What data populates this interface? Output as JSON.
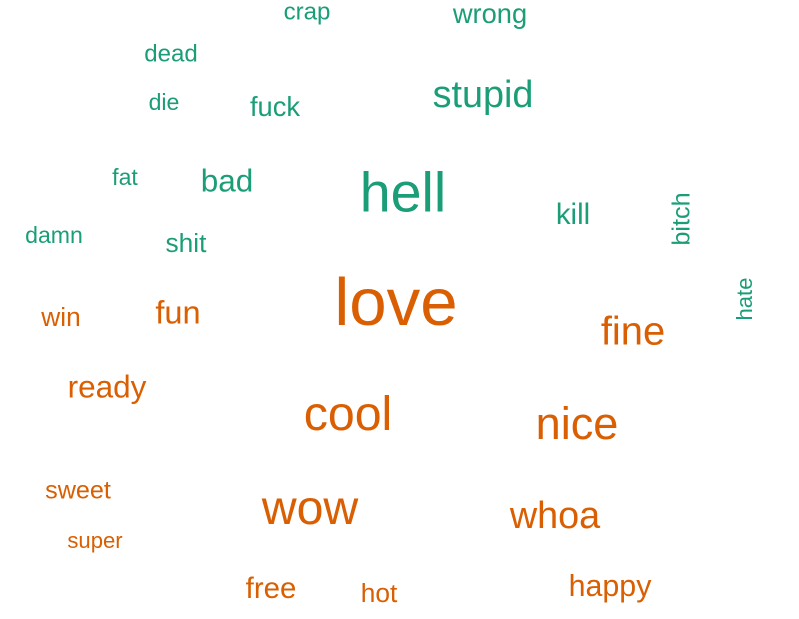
{
  "chart_data": {
    "type": "wordcloud",
    "groups": [
      {
        "id": "negative",
        "color": "#1b9e77"
      },
      {
        "id": "positive",
        "color": "#d95f02"
      }
    ],
    "words": [
      {
        "text": "crap",
        "group": "negative",
        "weight": 2.3,
        "rotate": 0
      },
      {
        "text": "wrong",
        "group": "negative",
        "weight": 2.6,
        "rotate": 0
      },
      {
        "text": "dead",
        "group": "negative",
        "weight": 2.3,
        "rotate": 0
      },
      {
        "text": "die",
        "group": "negative",
        "weight": 2.2,
        "rotate": 0
      },
      {
        "text": "fuck",
        "group": "negative",
        "weight": 2.6,
        "rotate": 0
      },
      {
        "text": "stupid",
        "group": "negative",
        "weight": 3.6,
        "rotate": 0
      },
      {
        "text": "fat",
        "group": "negative",
        "weight": 2.2,
        "rotate": 0
      },
      {
        "text": "bad",
        "group": "negative",
        "weight": 3.0,
        "rotate": 0
      },
      {
        "text": "hell",
        "group": "negative",
        "weight": 5.3,
        "rotate": 0
      },
      {
        "text": "kill",
        "group": "negative",
        "weight": 2.8,
        "rotate": 0
      },
      {
        "text": "bitch",
        "group": "negative",
        "weight": 2.4,
        "rotate": -90
      },
      {
        "text": "damn",
        "group": "negative",
        "weight": 2.2,
        "rotate": 0
      },
      {
        "text": "shit",
        "group": "negative",
        "weight": 2.5,
        "rotate": 0
      },
      {
        "text": "hate",
        "group": "negative",
        "weight": 2.1,
        "rotate": -90
      },
      {
        "text": "win",
        "group": "positive",
        "weight": 2.5,
        "rotate": 0
      },
      {
        "text": "fun",
        "group": "positive",
        "weight": 3.1,
        "rotate": 0
      },
      {
        "text": "love",
        "group": "positive",
        "weight": 6.4,
        "rotate": 0
      },
      {
        "text": "fine",
        "group": "positive",
        "weight": 3.8,
        "rotate": 0
      },
      {
        "text": "ready",
        "group": "positive",
        "weight": 3.0,
        "rotate": 0
      },
      {
        "text": "cool",
        "group": "positive",
        "weight": 4.6,
        "rotate": 0
      },
      {
        "text": "nice",
        "group": "positive",
        "weight": 4.3,
        "rotate": 0
      },
      {
        "text": "sweet",
        "group": "positive",
        "weight": 2.4,
        "rotate": 0
      },
      {
        "text": "wow",
        "group": "positive",
        "weight": 4.6,
        "rotate": 0
      },
      {
        "text": "whoa",
        "group": "positive",
        "weight": 3.6,
        "rotate": 0
      },
      {
        "text": "super",
        "group": "positive",
        "weight": 2.1,
        "rotate": 0
      },
      {
        "text": "free",
        "group": "positive",
        "weight": 2.8,
        "rotate": 0
      },
      {
        "text": "hot",
        "group": "positive",
        "weight": 2.5,
        "rotate": 0
      },
      {
        "text": "happy",
        "group": "positive",
        "weight": 2.9,
        "rotate": 0
      }
    ]
  }
}
